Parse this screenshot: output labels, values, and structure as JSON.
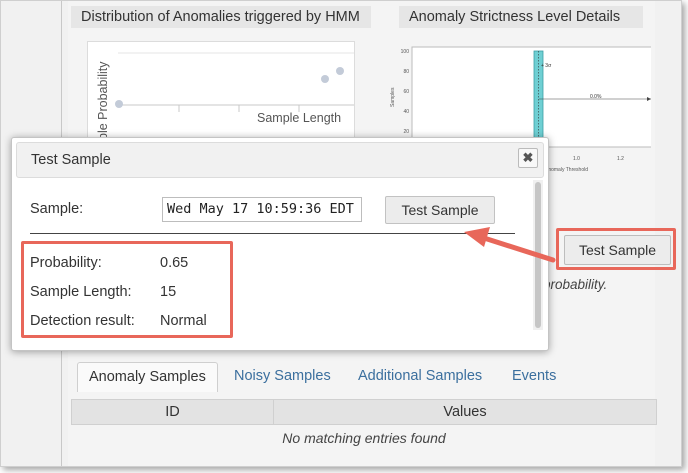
{
  "panels": {
    "left_title": "Distribution of Anomalies triggered by HMM",
    "right_title": "Anomaly Strictness Level Details"
  },
  "left_chart": {
    "ylabel": "ple Probability",
    "xlabel": "Sample Length"
  },
  "right_chart": {
    "ylabel": "Samples",
    "xlabel": "Anomaly Threshold",
    "y_ticks": [
      "100",
      "80",
      "60",
      "40",
      "20"
    ],
    "x_ticks": [
      "1.0",
      "1.2"
    ],
    "sigma_label": "+ 3σ",
    "percent_label": "0.0%"
  },
  "background": {
    "test_sample_button": "Test Sample",
    "hint_text": "probability."
  },
  "dialog": {
    "title": "Test Sample",
    "close_icon_glyph": "✖",
    "sample_label": "Sample:",
    "sample_value": "Wed May 17 10:59:36 EDT",
    "test_button": "Test Sample",
    "results": [
      {
        "label": "Probability:",
        "value": "0.65"
      },
      {
        "label": "Sample Length:",
        "value": "15"
      },
      {
        "label": "Detection result:",
        "value": "Normal"
      }
    ]
  },
  "tabs": [
    {
      "label": "Anomaly Samples",
      "active": true
    },
    {
      "label": "Noisy Samples",
      "active": false
    },
    {
      "label": "Additional Samples",
      "active": false
    },
    {
      "label": "Events",
      "active": false
    }
  ],
  "table": {
    "columns": [
      "ID",
      "Values"
    ],
    "empty_text": "No matching entries found"
  },
  "colors": {
    "callout": "#e8675a",
    "link": "#3b6f9e",
    "bar": "#6fcfd3"
  }
}
